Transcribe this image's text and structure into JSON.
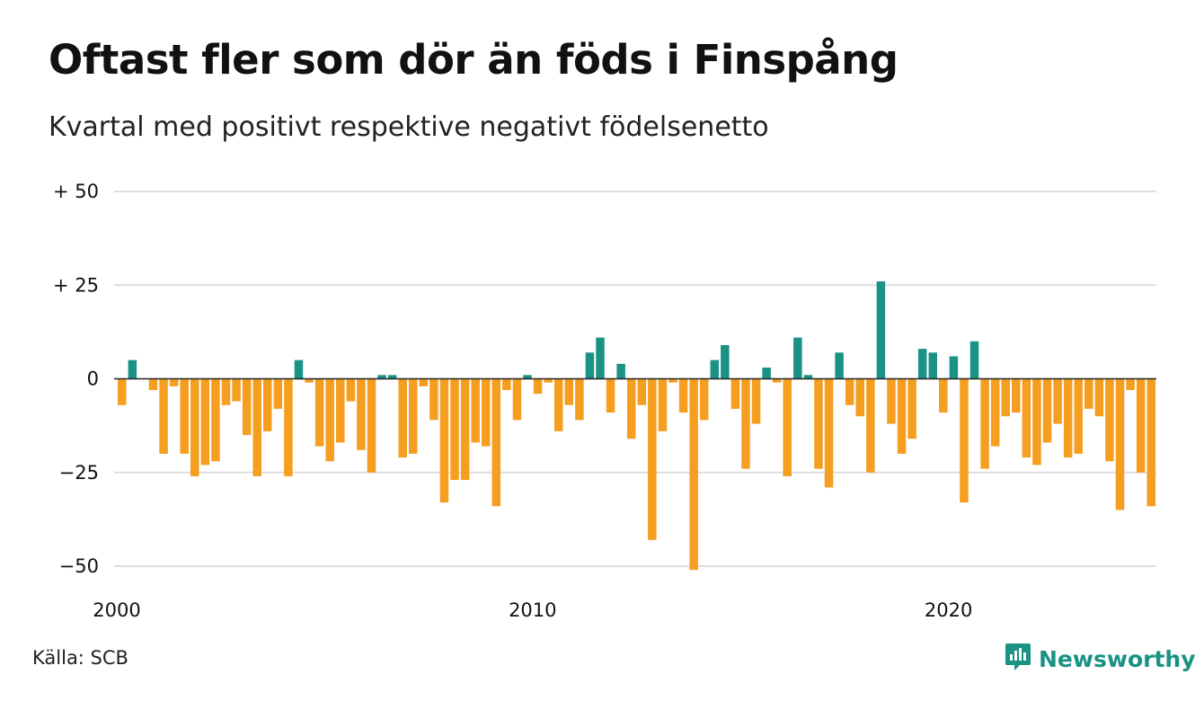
{
  "title": "Oftast fler som dör än föds i Finspång",
  "subtitle": "Kvartal med positivt respektive negativt födelsenetto",
  "source": "Källa: SCB",
  "brand": {
    "name": "Newsworthy",
    "icon": "newsworthy-logo-icon"
  },
  "colors": {
    "positive": "#1a9385",
    "negative": "#f59e1f",
    "grid": "#dddddd",
    "zero_line": "#222222"
  },
  "chart_data": {
    "type": "bar",
    "title": "Oftast fler som dör än föds i Finspång",
    "subtitle": "Kvartal med positivt respektive negativt födelsenetto",
    "x_start": "2000-Q1",
    "x_end": "2024-Q4",
    "xlabel": "",
    "ylabel": "",
    "ylim": [
      -50,
      50
    ],
    "y_ticks": [
      {
        "value": 50,
        "label": "+ 50"
      },
      {
        "value": 25,
        "label": "+ 25"
      },
      {
        "value": 0,
        "label": "0"
      },
      {
        "value": -25,
        "label": "−25"
      },
      {
        "value": -50,
        "label": "−50"
      }
    ],
    "x_ticks": [
      {
        "period": "2000-Q1",
        "label": "2000"
      },
      {
        "period": "2010-Q1",
        "label": "2010"
      },
      {
        "period": "2020-Q1",
        "label": "2020"
      }
    ],
    "values": [
      -7,
      5,
      0,
      -3,
      -20,
      -2,
      -20,
      -26,
      -23,
      -22,
      -7,
      -6,
      -15,
      -26,
      -14,
      -8,
      -26,
      5,
      -1,
      -18,
      -22,
      -17,
      -6,
      -19,
      -25,
      1,
      1,
      -21,
      -20,
      -2,
      -11,
      -33,
      -27,
      -27,
      -17,
      -18,
      -34,
      -3,
      -11,
      1,
      -4,
      -1,
      -14,
      -7,
      -11,
      7,
      11,
      -9,
      4,
      -16,
      -7,
      -43,
      -14,
      -1,
      -9,
      -51,
      -11,
      5,
      9,
      -8,
      -24,
      -12,
      3,
      -1,
      -26,
      11,
      1,
      -24,
      -29,
      7,
      -7,
      -10,
      -25,
      26,
      -12,
      -20,
      -16,
      8,
      7,
      -9,
      6,
      -33,
      10,
      -24,
      -18,
      -10,
      -9,
      -21,
      -23,
      -17,
      -12,
      -21,
      -20,
      -8,
      -10,
      -22,
      -35,
      -3,
      -25,
      -34
    ],
    "grid": true,
    "legend": "none"
  }
}
